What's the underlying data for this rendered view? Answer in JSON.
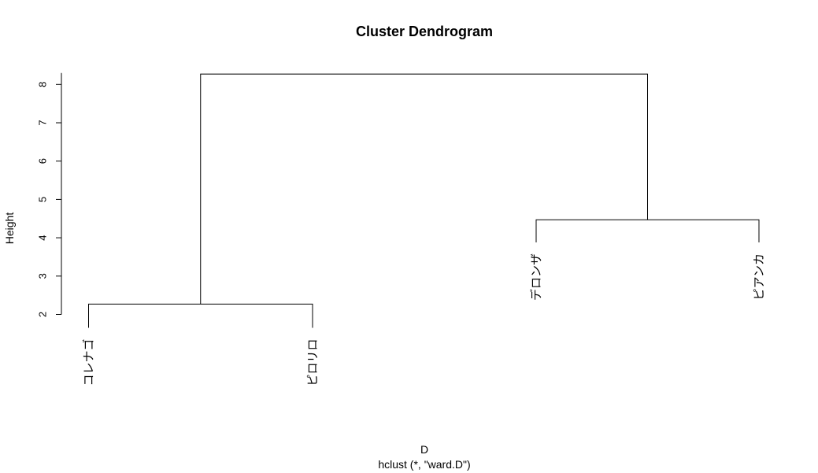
{
  "chart_data": {
    "type": "dendrogram",
    "title": "Cluster Dendrogram",
    "xlabel": "D",
    "sub": "hclust (*, \"ward.D\")",
    "ylabel": "Height",
    "y_ticks": [
      2,
      3,
      4,
      5,
      6,
      7,
      8
    ],
    "ylim": [
      2,
      8.3
    ],
    "leaves": [
      {
        "label": "コレナゴ",
        "height": 1.65
      },
      {
        "label": "ピロリロ",
        "height": 1.65
      },
      {
        "label": "デロンザ",
        "height": 3.88
      },
      {
        "label": "ピアンカ",
        "height": 3.88
      }
    ],
    "merges": [
      {
        "left": 0,
        "right": 1,
        "height": 2.27
      },
      {
        "left": 2,
        "right": 3,
        "height": 4.47
      },
      {
        "left": "m0",
        "right": "m1",
        "height": 8.27
      }
    ]
  }
}
